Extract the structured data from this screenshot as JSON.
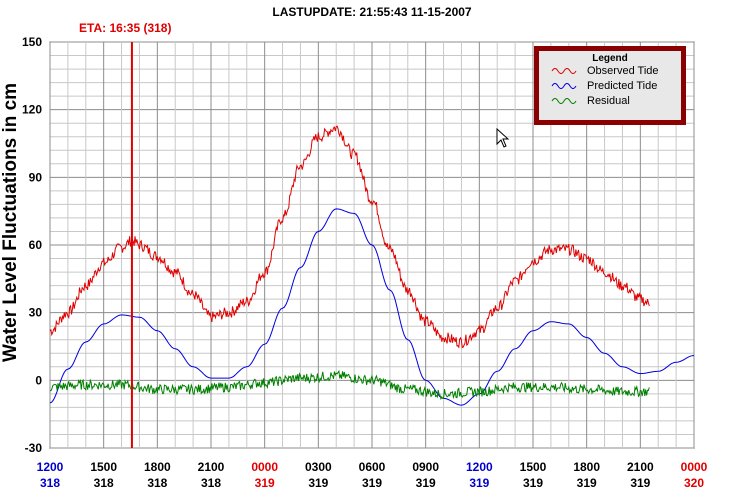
{
  "header": {
    "last_update": "LASTUPDATE: 21:55:43  11-15-2007",
    "eta": "ETA: 16:35 (318)"
  },
  "legend": {
    "title": "Legend",
    "items": [
      {
        "label": "Observed Tide",
        "color": "#e00000"
      },
      {
        "label": "Predicted Tide",
        "color": "#0000e0"
      },
      {
        "label": "Residual",
        "color": "#008000"
      }
    ]
  },
  "chart_data": {
    "type": "line",
    "ylabel": "Water Level Fluctuations in cm",
    "ylim": [
      -30,
      150
    ],
    "yticks": [
      -30,
      0,
      30,
      60,
      90,
      120,
      150
    ],
    "xlim_hours": [
      0,
      36
    ],
    "grid": true,
    "legend_placement": "top-right",
    "x_ticks": [
      {
        "time": "1200",
        "day": "318",
        "color": "#0000cc"
      },
      {
        "time": "1500",
        "day": "318",
        "color": "#000000"
      },
      {
        "time": "1800",
        "day": "318",
        "color": "#000000"
      },
      {
        "time": "2100",
        "day": "318",
        "color": "#000000"
      },
      {
        "time": "0000",
        "day": "319",
        "color": "#e00000"
      },
      {
        "time": "0300",
        "day": "319",
        "color": "#000000"
      },
      {
        "time": "0600",
        "day": "319",
        "color": "#000000"
      },
      {
        "time": "0900",
        "day": "319",
        "color": "#000000"
      },
      {
        "time": "1200",
        "day": "319",
        "color": "#0000cc"
      },
      {
        "time": "1500",
        "day": "319",
        "color": "#000000"
      },
      {
        "time": "1800",
        "day": "319",
        "color": "#000000"
      },
      {
        "time": "2100",
        "day": "319",
        "color": "#000000"
      },
      {
        "time": "0000",
        "day": "320",
        "color": "#e00000"
      }
    ],
    "eta_marker_hours": 4.58,
    "series": [
      {
        "name": "Observed Tide",
        "color": "#e00000",
        "noise": 2.5,
        "x": [
          0,
          1,
          2,
          3,
          4,
          4.6,
          5,
          6,
          7,
          8,
          9,
          10,
          11,
          12,
          13,
          14,
          15,
          16,
          17,
          18,
          19,
          20,
          21,
          22,
          23,
          24,
          25,
          26,
          27,
          28,
          29,
          30,
          31,
          32,
          33,
          33.5
        ],
        "y": [
          22,
          30,
          42,
          52,
          59,
          62,
          60,
          55,
          48,
          38,
          28,
          30,
          35,
          48,
          72,
          95,
          108,
          112,
          100,
          80,
          58,
          40,
          26,
          19,
          17,
          22,
          32,
          44,
          53,
          58,
          58,
          54,
          48,
          42,
          36,
          34
        ]
      },
      {
        "name": "Predicted Tide",
        "color": "#0000e0",
        "noise": 0,
        "x": [
          0,
          1,
          2,
          3,
          4,
          5,
          6,
          7,
          8,
          9,
          10,
          11,
          12,
          13,
          14,
          15,
          16,
          17,
          18,
          19,
          20,
          21,
          22,
          23,
          24,
          25,
          26,
          27,
          28,
          29,
          30,
          31,
          32,
          33,
          34,
          35,
          36
        ],
        "y": [
          -10,
          5,
          17,
          25,
          29,
          28,
          22,
          14,
          6,
          1,
          1,
          6,
          16,
          32,
          50,
          66,
          76,
          74,
          60,
          40,
          18,
          0,
          -8,
          -11,
          -6,
          4,
          14,
          22,
          26,
          25,
          19,
          12,
          6,
          3,
          4,
          8,
          11
        ]
      },
      {
        "name": "Residual",
        "color": "#008000",
        "noise": 2.2,
        "x": [
          0,
          2,
          4,
          6,
          8,
          10,
          12,
          14,
          16,
          18,
          20,
          22,
          24,
          26,
          28,
          30,
          32,
          33.5
        ],
        "y": [
          -3,
          -2,
          -2,
          -4,
          -4,
          -3,
          -1,
          1,
          2,
          0,
          -4,
          -6,
          -5,
          -3,
          -3,
          -4,
          -5,
          -5
        ]
      }
    ]
  }
}
